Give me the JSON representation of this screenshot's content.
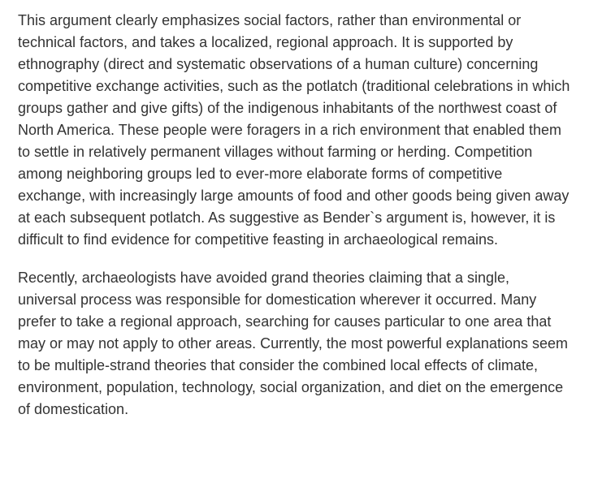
{
  "passage": {
    "paragraphs": [
      "This argument clearly emphasizes social factors, rather than environmental or technical factors, and takes a localized, regional approach. It is supported by ethnography (direct and systematic observations of a human culture) concerning competitive exchange activities, such as the potlatch (traditional celebrations in which groups gather and give gifts) of the indigenous inhabitants of the northwest coast of North America. These people were foragers in a rich environment that enabled them to settle in relatively permanent villages without farming or herding. Competition among neighboring groups led to ever-more elaborate forms of competitive exchange, with increasingly large amounts of food and other goods being given away at each subsequent potlatch. As suggestive as Bender`s argument is, however, it is difficult to find evidence for competitive feasting in archaeological remains.",
      "Recently, archaeologists have avoided grand theories claiming that a single, universal process was responsible for domestication wherever it occurred. Many prefer to take a regional approach, searching for causes particular to one area that may or may not apply to other areas. Currently, the most powerful explanations seem to be multiple-strand theories that consider the combined local effects of climate, environment, population, technology, social organization, and diet on the emergence of domestication."
    ]
  }
}
